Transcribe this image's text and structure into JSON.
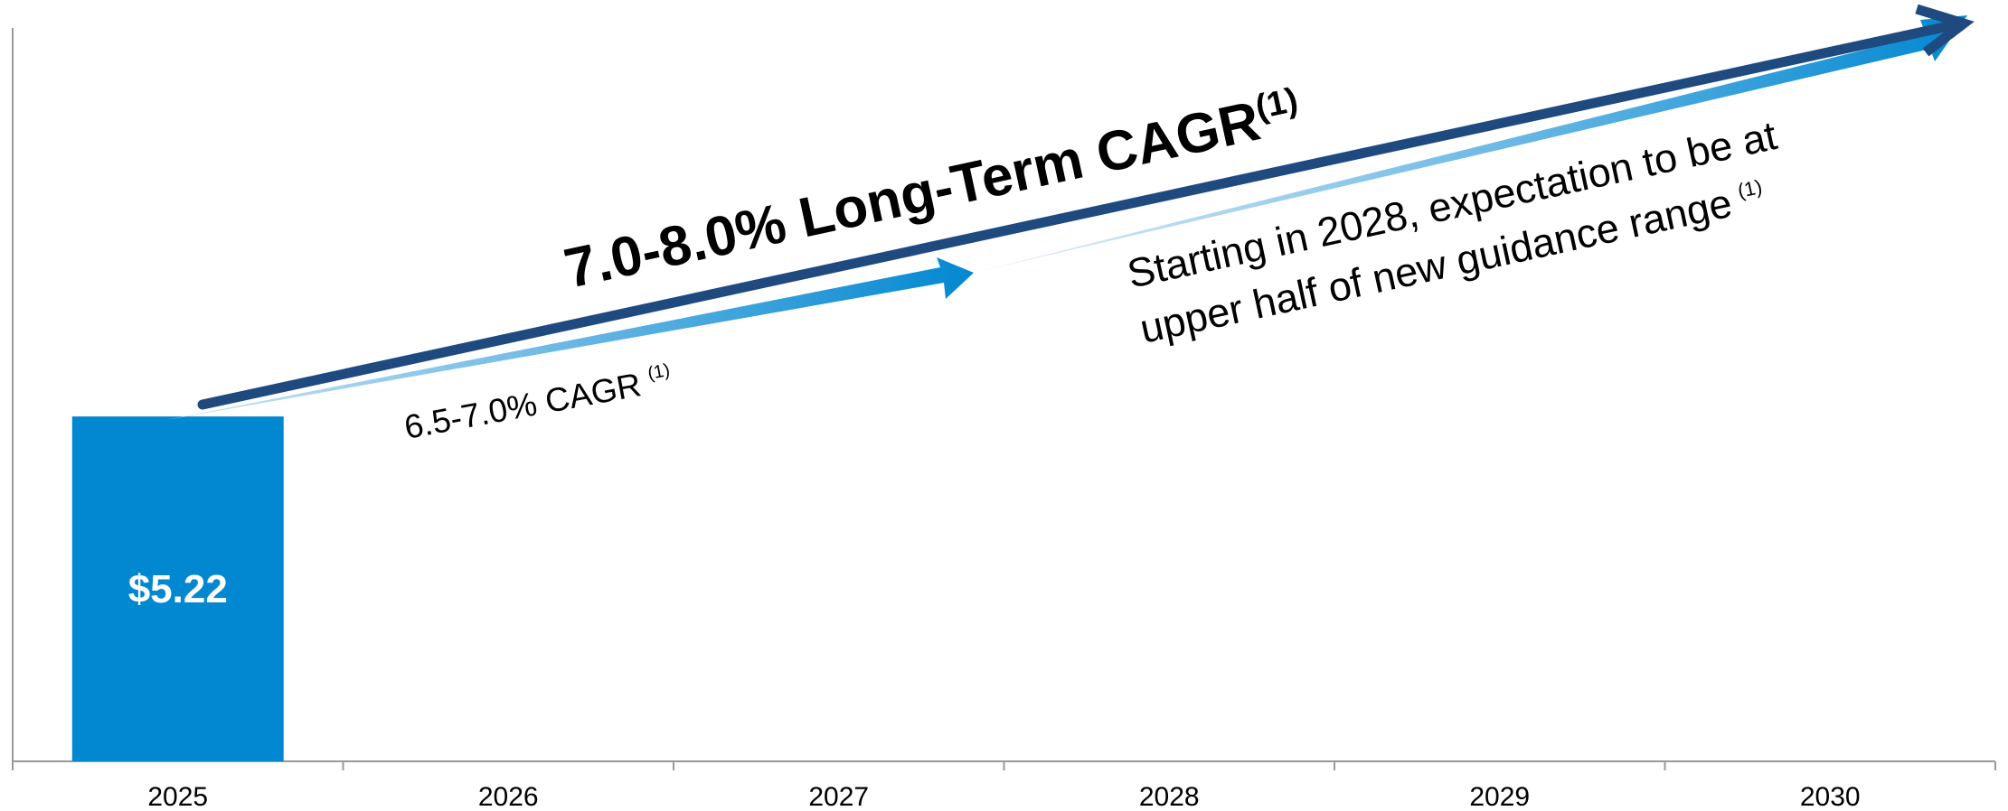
{
  "chart_data": {
    "type": "bar",
    "categories": [
      "2025",
      "2026",
      "2027",
      "2028",
      "2029",
      "2030"
    ],
    "values": [
      5.22,
      null,
      null,
      null,
      null,
      null
    ],
    "value_labels": [
      "$5.22",
      null,
      null,
      null,
      null,
      null
    ],
    "color": "#0288d1",
    "ylim": [
      0,
      11.1
    ],
    "annotations": [
      {
        "text": "7.0-8.0% Long-Term CAGR",
        "sup": "(1)"
      },
      {
        "text": "6.5-7.0% CAGR",
        "sup": "(1)"
      },
      {
        "lines": [
          "Starting in 2028, expectation to be at",
          "upper half of new guidance range"
        ],
        "sup": "(1)"
      }
    ]
  }
}
